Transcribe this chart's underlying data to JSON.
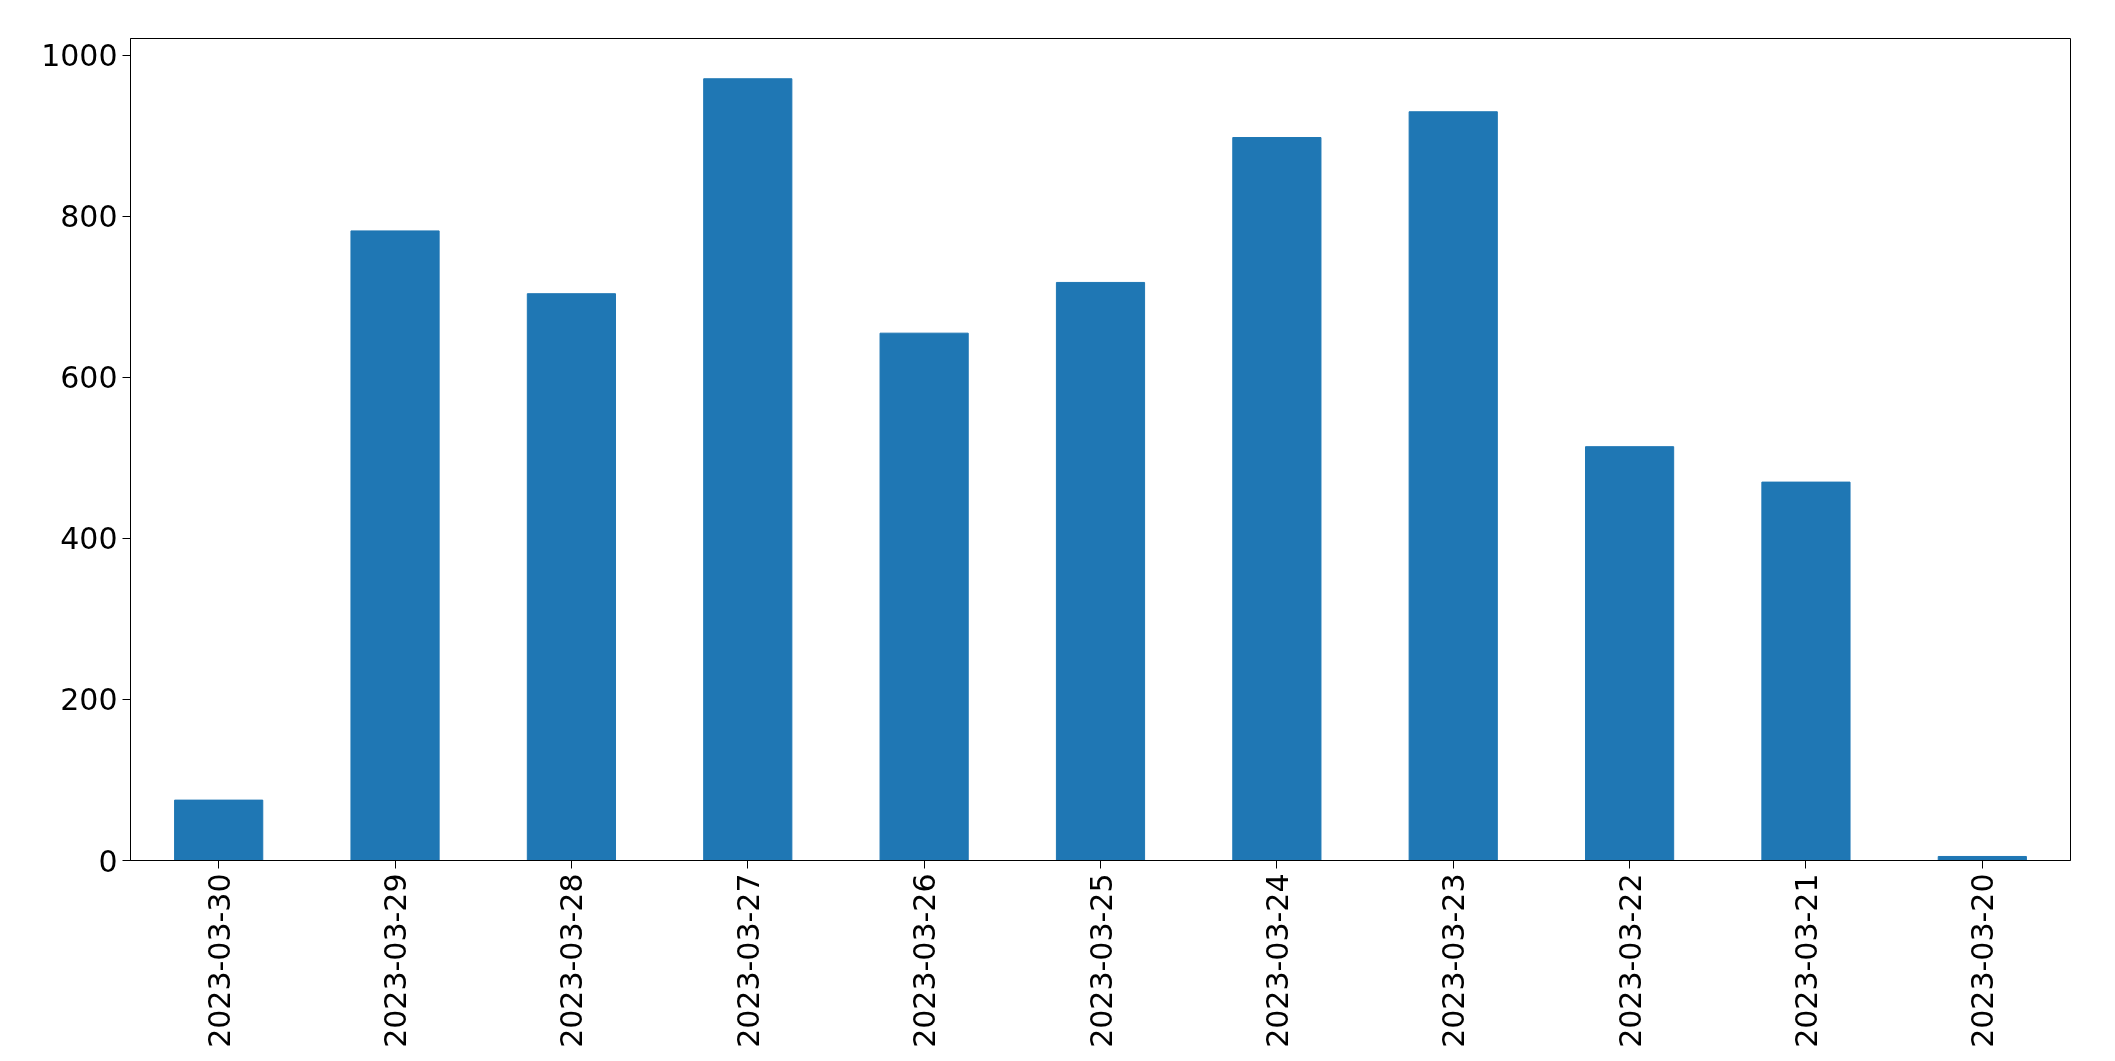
{
  "chart_data": {
    "type": "bar",
    "categories": [
      "2023-03-30",
      "2023-03-29",
      "2023-03-28",
      "2023-03-27",
      "2023-03-26",
      "2023-03-25",
      "2023-03-24",
      "2023-03-23",
      "2023-03-22",
      "2023-03-21",
      "2023-03-20"
    ],
    "values": [
      75,
      782,
      704,
      971,
      655,
      718,
      898,
      930,
      514,
      470,
      5
    ],
    "color": "#1f77b4",
    "ylim": [
      0,
      1021
    ],
    "yticks": [
      0,
      200,
      400,
      600,
      800,
      1000
    ],
    "grid": false
  }
}
